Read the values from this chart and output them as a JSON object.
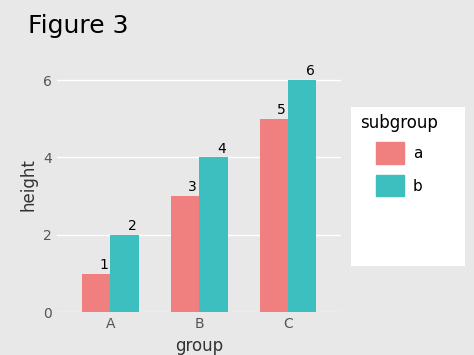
{
  "title": "Figure 3",
  "xlabel": "group",
  "ylabel": "height",
  "groups": [
    "A",
    "B",
    "C"
  ],
  "subgroups": [
    "a",
    "b"
  ],
  "values_a": [
    1,
    3,
    5
  ],
  "values_b": [
    2,
    4,
    6
  ],
  "color_a": "#F08080",
  "color_b": "#3DBFBF",
  "plot_bg_color": "#E8E8E8",
  "figure_bg_color": "#E8E8E8",
  "legend_bg_color": "#FFFFFF",
  "ylim": [
    0,
    6.6
  ],
  "yticks": [
    0,
    2,
    4,
    6
  ],
  "bar_width": 0.32,
  "legend_title": "subgroup",
  "legend_labels": [
    "a",
    "b"
  ],
  "title_fontsize": 18,
  "axis_label_fontsize": 12,
  "tick_fontsize": 10,
  "legend_fontsize": 11,
  "legend_title_fontsize": 12
}
